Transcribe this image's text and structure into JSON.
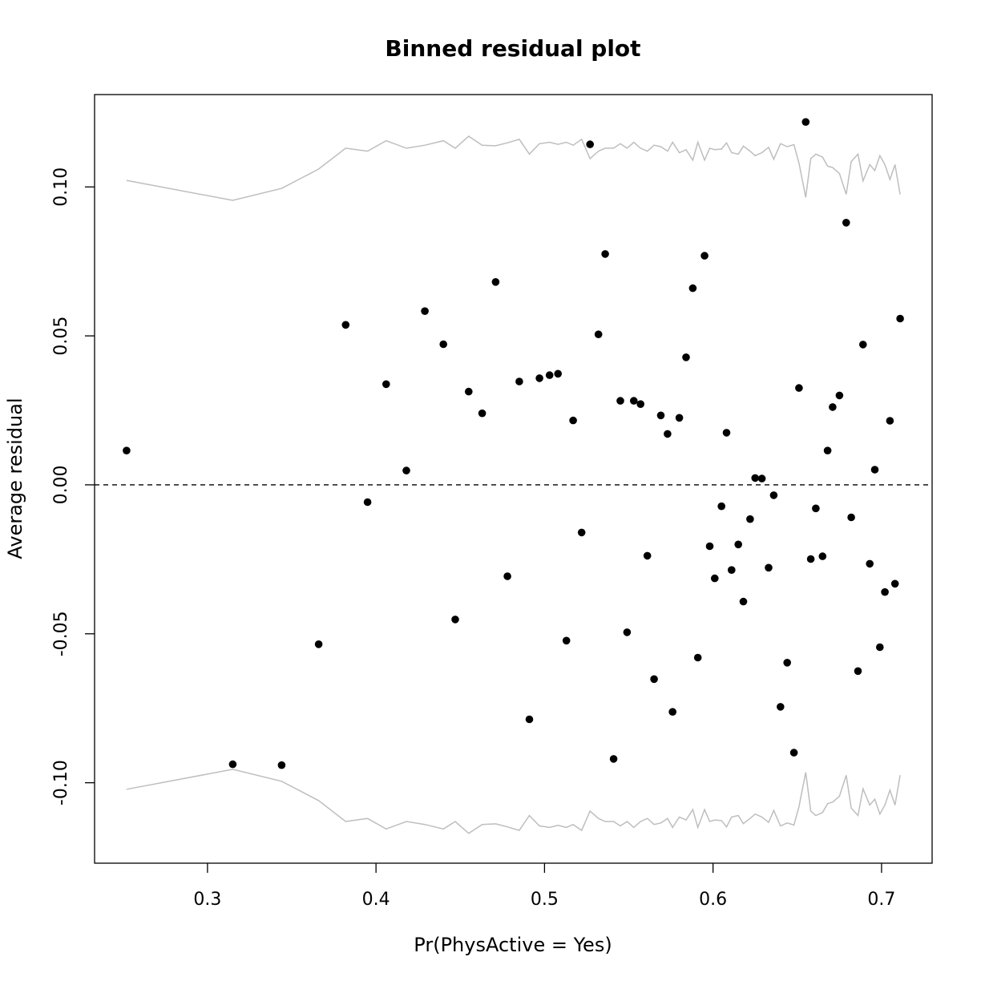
{
  "chart_data": {
    "type": "scatter",
    "title": "Binned residual plot",
    "xlabel": "Pr(PhysActive = Yes)",
    "ylabel": "Average residual",
    "xlim": [
      0.233,
      0.73
    ],
    "ylim": [
      -0.127,
      0.131
    ],
    "xticks": [
      0.3,
      0.4,
      0.5,
      0.6,
      0.7
    ],
    "xtick_labels": [
      "0.3",
      "0.4",
      "0.5",
      "0.6",
      "0.7"
    ],
    "yticks": [
      -0.1,
      -0.05,
      0.0,
      0.05,
      0.1
    ],
    "ytick_labels": [
      "-0.10",
      "-0.05",
      "0.00",
      "0.05",
      "0.10"
    ],
    "reference_line": {
      "y": 0.0,
      "style": "dashed",
      "color": "#000000"
    },
    "point_color": "#000000",
    "band_color": "#bebebe",
    "points": [
      [
        0.252,
        0.0115
      ],
      [
        0.315,
        -0.0938
      ],
      [
        0.344,
        -0.0941
      ],
      [
        0.366,
        -0.0535
      ],
      [
        0.382,
        0.0537
      ],
      [
        0.395,
        -0.0058
      ],
      [
        0.406,
        0.0338
      ],
      [
        0.418,
        0.0048
      ],
      [
        0.429,
        0.0583
      ],
      [
        0.44,
        0.0472
      ],
      [
        0.447,
        -0.0452
      ],
      [
        0.455,
        0.0313
      ],
      [
        0.463,
        0.024
      ],
      [
        0.471,
        0.0681
      ],
      [
        0.478,
        -0.0307
      ],
      [
        0.485,
        0.0347
      ],
      [
        0.491,
        -0.0787
      ],
      [
        0.497,
        0.0358
      ],
      [
        0.503,
        0.0368
      ],
      [
        0.508,
        0.0373
      ],
      [
        0.513,
        -0.0523
      ],
      [
        0.517,
        0.0216
      ],
      [
        0.522,
        -0.016
      ],
      [
        0.527,
        0.1143
      ],
      [
        0.532,
        0.0505
      ],
      [
        0.536,
        0.0775
      ],
      [
        0.541,
        -0.092
      ],
      [
        0.545,
        0.0282
      ],
      [
        0.549,
        -0.0495
      ],
      [
        0.553,
        0.0282
      ],
      [
        0.557,
        0.0271
      ],
      [
        0.561,
        -0.0238
      ],
      [
        0.565,
        -0.0652
      ],
      [
        0.569,
        0.0233
      ],
      [
        0.573,
        0.0171
      ],
      [
        0.576,
        -0.0762
      ],
      [
        0.58,
        0.0225
      ],
      [
        0.584,
        0.0428
      ],
      [
        0.588,
        0.066
      ],
      [
        0.591,
        -0.058
      ],
      [
        0.595,
        0.0769
      ],
      [
        0.598,
        -0.0206
      ],
      [
        0.601,
        -0.0314
      ],
      [
        0.605,
        -0.0072
      ],
      [
        0.608,
        0.0175
      ],
      [
        0.611,
        -0.0286
      ],
      [
        0.615,
        -0.02
      ],
      [
        0.618,
        -0.0392
      ],
      [
        0.622,
        -0.0115
      ],
      [
        0.625,
        0.0023
      ],
      [
        0.629,
        0.0021
      ],
      [
        0.633,
        -0.0278
      ],
      [
        0.636,
        -0.0035
      ],
      [
        0.64,
        -0.0745
      ],
      [
        0.644,
        -0.0597
      ],
      [
        0.648,
        -0.0899
      ],
      [
        0.651,
        0.0325
      ],
      [
        0.655,
        0.1218
      ],
      [
        0.658,
        -0.0249
      ],
      [
        0.661,
        -0.0079
      ],
      [
        0.665,
        -0.024
      ],
      [
        0.668,
        0.0115
      ],
      [
        0.671,
        0.0261
      ],
      [
        0.675,
        0.03
      ],
      [
        0.679,
        0.088
      ],
      [
        0.682,
        -0.0109
      ],
      [
        0.686,
        -0.0625
      ],
      [
        0.689,
        0.0471
      ],
      [
        0.693,
        -0.0265
      ],
      [
        0.696,
        0.0051
      ],
      [
        0.699,
        -0.0545
      ],
      [
        0.702,
        -0.036
      ],
      [
        0.705,
        0.0215
      ],
      [
        0.708,
        -0.0332
      ],
      [
        0.711,
        0.0558
      ]
    ],
    "bands": {
      "x": [
        0.252,
        0.315,
        0.344,
        0.366,
        0.382,
        0.395,
        0.406,
        0.418,
        0.429,
        0.44,
        0.447,
        0.455,
        0.463,
        0.471,
        0.478,
        0.485,
        0.491,
        0.497,
        0.503,
        0.508,
        0.513,
        0.517,
        0.522,
        0.527,
        0.532,
        0.536,
        0.541,
        0.545,
        0.549,
        0.553,
        0.557,
        0.561,
        0.565,
        0.569,
        0.573,
        0.576,
        0.58,
        0.584,
        0.588,
        0.591,
        0.595,
        0.598,
        0.601,
        0.605,
        0.608,
        0.611,
        0.615,
        0.618,
        0.622,
        0.625,
        0.629,
        0.633,
        0.636,
        0.64,
        0.644,
        0.648,
        0.651,
        0.655,
        0.658,
        0.661,
        0.665,
        0.668,
        0.671,
        0.675,
        0.679,
        0.682,
        0.686,
        0.689,
        0.693,
        0.696,
        0.699,
        0.702,
        0.705,
        0.708,
        0.711
      ],
      "upper": [
        0.1022,
        0.0955,
        0.0995,
        0.106,
        0.113,
        0.112,
        0.1155,
        0.113,
        0.114,
        0.1155,
        0.113,
        0.117,
        0.114,
        0.1138,
        0.1148,
        0.116,
        0.111,
        0.1145,
        0.115,
        0.1143,
        0.115,
        0.114,
        0.116,
        0.1095,
        0.112,
        0.113,
        0.113,
        0.1145,
        0.113,
        0.115,
        0.113,
        0.112,
        0.114,
        0.1135,
        0.112,
        0.115,
        0.1115,
        0.1125,
        0.109,
        0.115,
        0.109,
        0.113,
        0.1125,
        0.1127,
        0.1148,
        0.1115,
        0.111,
        0.1137,
        0.112,
        0.1105,
        0.1115,
        0.1133,
        0.1093,
        0.1145,
        0.1135,
        0.1142,
        0.108,
        0.0965,
        0.1095,
        0.111,
        0.11,
        0.107,
        0.1065,
        0.1045,
        0.0975,
        0.1085,
        0.111,
        0.102,
        0.1075,
        0.1055,
        0.1105,
        0.1075,
        0.1025,
        0.1075,
        0.0975
      ],
      "lower": [
        -0.1022,
        -0.0955,
        -0.0995,
        -0.106,
        -0.113,
        -0.112,
        -0.1155,
        -0.113,
        -0.114,
        -0.1155,
        -0.113,
        -0.117,
        -0.114,
        -0.1138,
        -0.1148,
        -0.116,
        -0.111,
        -0.1145,
        -0.115,
        -0.1143,
        -0.115,
        -0.114,
        -0.116,
        -0.1095,
        -0.112,
        -0.113,
        -0.113,
        -0.1145,
        -0.113,
        -0.115,
        -0.113,
        -0.112,
        -0.114,
        -0.1135,
        -0.112,
        -0.115,
        -0.1115,
        -0.1125,
        -0.109,
        -0.115,
        -0.109,
        -0.113,
        -0.1125,
        -0.1127,
        -0.1148,
        -0.1115,
        -0.111,
        -0.1137,
        -0.112,
        -0.1105,
        -0.1115,
        -0.1133,
        -0.1093,
        -0.1145,
        -0.1135,
        -0.1142,
        -0.108,
        -0.0965,
        -0.1095,
        -0.111,
        -0.11,
        -0.107,
        -0.1065,
        -0.1045,
        -0.0975,
        -0.1085,
        -0.111,
        -0.102,
        -0.1075,
        -0.1055,
        -0.1105,
        -0.1075,
        -0.1025,
        -0.1075,
        -0.0975
      ]
    }
  }
}
